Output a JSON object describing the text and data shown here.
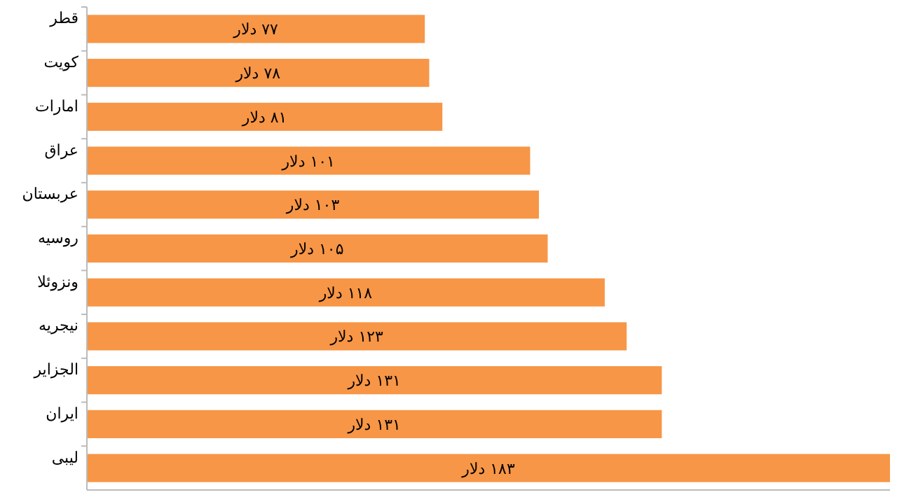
{
  "chart_data": {
    "type": "bar",
    "orientation": "horizontal",
    "tick_labels": "y",
    "categories": [
      "قطر",
      "کویت",
      "امارات",
      "عراق",
      "عربستان",
      "روسیه",
      "ونزوئلا",
      "نیجریه",
      "الجزایر",
      "ایران",
      "لیبی"
    ],
    "values": [
      77,
      78,
      81,
      101,
      103,
      105,
      118,
      123,
      131,
      131,
      183
    ],
    "value_labels": [
      "۷۷ دلار",
      "۷۸ دلار",
      "۸۱ دلار",
      "۱۰۱ دلار",
      "۱۰۳ دلار",
      "۱۰۵ دلار",
      "۱۱۸ دلار",
      "۱۲۳ دلار",
      "۱۳۱ دلار",
      "۱۳۱ دلار",
      "۱۸۳ دلار"
    ],
    "color": "#f79646",
    "xlim": [
      0,
      183
    ]
  }
}
